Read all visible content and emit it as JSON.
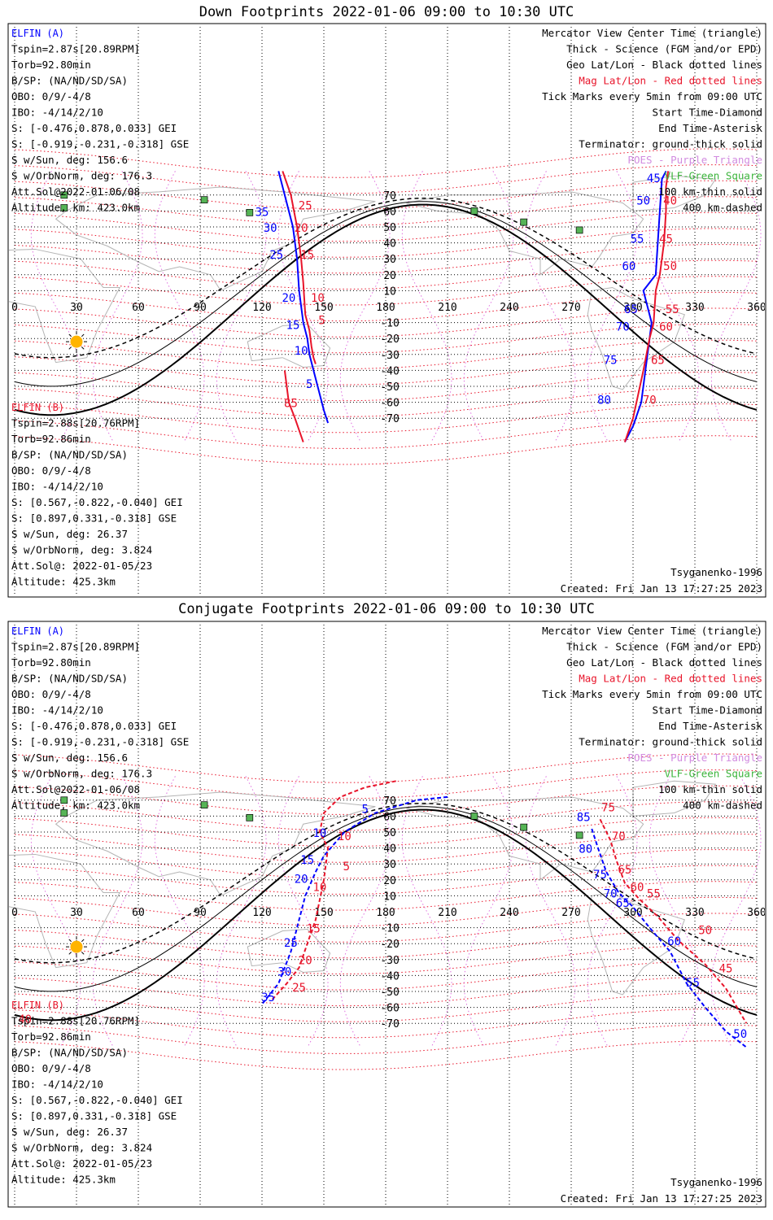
{
  "panels": [
    {
      "title": "Down Footprints 2022-01-06 09:00 to 10:30 UTC",
      "elfin_a": {
        "name": "ELFIN (A)",
        "lines": [
          "Tspin=2.87s[20.89RPM]",
          "Torb=92.80min",
          "B/SP: (NA/ND/SD/SA)",
          "OBO: 0/9/-4/8",
          "IBO: -4/14/2/10",
          "S: [-0.476,0.878,0.033] GEI",
          "S: [-0.919,-0.231,-0.318] GSE",
          "S w/Sun, deg: 156.6",
          "S w/OrbNorm, deg: 176.3",
          "Att.Sol@2022-01-06/08",
          "Altitude, km: 423.0km"
        ]
      },
      "elfin_b": {
        "name": "ELFIN (B)",
        "lines": [
          "Tspin=2.88s[20.76RPM]",
          "Torb=92.86min",
          "B/SP: (NA/ND/SD/SA)",
          "OBO: 0/9/-4/8",
          "IBO: -4/14/2/10",
          "S: [0.567,-0.822,-0.040] GEI",
          "S: [0.897,0.331,-0.318] GSE",
          "S w/Sun, deg: 26.37",
          "S w/OrbNorm, deg: 3.824",
          "Att.Sol@: 2022-01-05/23",
          "Altitude: 425.3km"
        ]
      },
      "legend": [
        {
          "text": "Mercator View Center Time (triangle)",
          "color": "#000000"
        },
        {
          "text": "Thick - Science (FGM and/or EPD)",
          "color": "#000000"
        },
        {
          "text": "Geo Lat/Lon - Black dotted lines",
          "color": "#000000"
        },
        {
          "text": "Mag Lat/Lon - Red dotted lines",
          "color": "#e8142a"
        },
        {
          "text": "Tick Marks every 5min from 09:00 UTC",
          "color": "#000000"
        },
        {
          "text": "Start Time-Diamond",
          "color": "#000000"
        },
        {
          "text": "End Time-Asterisk",
          "color": "#000000"
        },
        {
          "text": "Terminator: ground-thick solid",
          "color": "#000000"
        },
        {
          "text": "POES - Purple Triangle",
          "color": "#d28ce0"
        },
        {
          "text": "VLF-Green Square",
          "color": "#3cb43c"
        },
        {
          "text": "100 km-thin solid",
          "color": "#000000"
        },
        {
          "text": "400 km-dashed",
          "color": "#000000"
        }
      ],
      "model": "Tsyganenko-1996",
      "created": "Created: Fri Jan 13 17:27:25 2023",
      "a_ticks": [
        {
          "t": "35",
          "lon": 120,
          "lat": 57
        },
        {
          "t": "30",
          "lon": 124,
          "lat": 47
        },
        {
          "t": "25",
          "lon": 127,
          "lat": 30
        },
        {
          "t": "20",
          "lon": 133,
          "lat": 3
        },
        {
          "t": "15",
          "lon": 135,
          "lat": -14
        },
        {
          "t": "10",
          "lon": 139,
          "lat": -30
        },
        {
          "t": "5",
          "lon": 143,
          "lat": -51
        },
        {
          "t": "45",
          "lon": 310,
          "lat": 78
        },
        {
          "t": "50",
          "lon": 305,
          "lat": 64
        },
        {
          "t": "55",
          "lon": 302,
          "lat": 40
        },
        {
          "t": "60",
          "lon": 298,
          "lat": 23
        },
        {
          "t": "65",
          "lon": 299,
          "lat": -4
        },
        {
          "t": "70",
          "lon": 295,
          "lat": -15
        },
        {
          "t": "75",
          "lon": 289,
          "lat": -36
        },
        {
          "t": "80",
          "lon": 286,
          "lat": -61
        }
      ],
      "b_ticks": [
        {
          "t": "25",
          "lon": 141,
          "lat": 61
        },
        {
          "t": "20",
          "lon": 139,
          "lat": 47
        },
        {
          "t": "15",
          "lon": 142,
          "lat": 30
        },
        {
          "t": "10",
          "lon": 147,
          "lat": 3
        },
        {
          "t": "5",
          "lon": 149,
          "lat": -11
        },
        {
          "t": "85",
          "lon": 134,
          "lat": -63
        },
        {
          "t": "40",
          "lon": 318,
          "lat": 64
        },
        {
          "t": "45",
          "lon": 316,
          "lat": 40
        },
        {
          "t": "50",
          "lon": 318,
          "lat": 23
        },
        {
          "t": "55",
          "lon": 319,
          "lat": -4
        },
        {
          "t": "60",
          "lon": 316,
          "lat": -15
        },
        {
          "t": "65",
          "lon": 312,
          "lat": -36
        },
        {
          "t": "70",
          "lon": 308,
          "lat": -61
        }
      ]
    },
    {
      "title": "Conjugate Footprints 2022-01-06 09:00 to 10:30 UTC",
      "elfin_a": {
        "name": "ELFIN (A)",
        "lines": [
          "Tspin=2.87s[20.89RPM]",
          "Torb=92.80min",
          "B/SP: (NA/ND/SD/SA)",
          "OBO: 0/9/-4/8",
          "IBO: -4/14/2/10",
          "S: [-0.476,0.878,0.033] GEI",
          "S: [-0.919,-0.231,-0.318] GSE",
          "S w/Sun, deg: 156.6",
          "S w/OrbNorm, deg: 176.3",
          "Att.Sol@2022-01-06/08",
          "Altitude, km: 423.0km"
        ]
      },
      "elfin_b": {
        "name": "ELFIN (B)",
        "lines": [
          "Tspin=2.88s[20.76RPM]",
          "Torb=92.86min",
          "B/SP: (NA/ND/SD/SA)",
          "OBO: 0/9/-4/8",
          "IBO: -4/14/2/10",
          "S: [0.567,-0.822,-0.040] GEI",
          "S: [0.897,0.331,-0.318] GSE",
          "S w/Sun, deg: 26.37",
          "S w/OrbNorm, deg: 3.824",
          "Att.Sol@: 2022-01-05/23",
          "Altitude: 425.3km"
        ]
      },
      "legend": [
        {
          "text": "Mercator View Center Time (triangle)",
          "color": "#000000"
        },
        {
          "text": "Thick - Science (FGM and/or EPD)",
          "color": "#000000"
        },
        {
          "text": "Geo Lat/Lon - Black dotted lines",
          "color": "#000000"
        },
        {
          "text": "Mag Lat/Lon - Red dotted lines",
          "color": "#e8142a"
        },
        {
          "text": "Tick Marks every 5min from 09:00 UTC",
          "color": "#000000"
        },
        {
          "text": "Start Time-Diamond",
          "color": "#000000"
        },
        {
          "text": "End Time-Asterisk",
          "color": "#000000"
        },
        {
          "text": "Terminator: ground-thick solid",
          "color": "#000000"
        },
        {
          "text": "POES - Purple Triangle",
          "color": "#d28ce0"
        },
        {
          "text": "VLF-Green Square",
          "color": "#3cb43c"
        },
        {
          "text": "100 km-thin solid",
          "color": "#000000"
        },
        {
          "text": "400 km-dashed",
          "color": "#000000"
        }
      ],
      "model": "Tsyganenko-1996",
      "created": "Created: Fri Jan 13 17:27:25 2023",
      "a_ticks": [
        {
          "t": "5",
          "lon": 170,
          "lat": 62
        },
        {
          "t": "10",
          "lon": 148,
          "lat": 47
        },
        {
          "t": "15",
          "lon": 142,
          "lat": 30
        },
        {
          "t": "20",
          "lon": 139,
          "lat": 18
        },
        {
          "t": "25",
          "lon": 134,
          "lat": -22
        },
        {
          "t": "30",
          "lon": 131,
          "lat": -40
        },
        {
          "t": "35",
          "lon": 123,
          "lat": -56
        },
        {
          "t": "85",
          "lon": 276,
          "lat": 57
        },
        {
          "t": "80",
          "lon": 277,
          "lat": 37
        },
        {
          "t": "75",
          "lon": 284,
          "lat": 21
        },
        {
          "t": "70",
          "lon": 289,
          "lat": 9
        },
        {
          "t": "65",
          "lon": 295,
          "lat": 3
        },
        {
          "t": "60",
          "lon": 320,
          "lat": -21
        },
        {
          "t": "55",
          "lon": 329,
          "lat": -47
        },
        {
          "t": "50",
          "lon": 352,
          "lat": -79
        }
      ],
      "b_ticks": [
        {
          "t": "10",
          "lon": 160,
          "lat": 45
        },
        {
          "t": "5",
          "lon": 161,
          "lat": 26
        },
        {
          "t": "10",
          "lon": 148,
          "lat": 13
        },
        {
          "t": "15",
          "lon": 145,
          "lat": -13
        },
        {
          "t": "20",
          "lon": 141,
          "lat": -33
        },
        {
          "t": "25",
          "lon": 138,
          "lat": -50
        },
        {
          "t": "40",
          "lon": 5,
          "lat": -70
        },
        {
          "t": "75",
          "lon": 288,
          "lat": 63
        },
        {
          "t": "70",
          "lon": 293,
          "lat": 45
        },
        {
          "t": "65",
          "lon": 296,
          "lat": 24
        },
        {
          "t": "60",
          "lon": 302,
          "lat": 13
        },
        {
          "t": "55",
          "lon": 310,
          "lat": 9
        },
        {
          "t": "50",
          "lon": 335,
          "lat": -14
        },
        {
          "t": "45",
          "lon": 345,
          "lat": -38
        }
      ]
    }
  ],
  "chart_data": [
    {
      "type": "line",
      "title": "Down Footprints 2022-01-06 09:00 to 10:30 UTC",
      "xlabel": "",
      "ylabel": "",
      "xlim": [
        0,
        360
      ],
      "ylim": [
        -80,
        80
      ],
      "x_ticks": [
        0,
        30,
        60,
        90,
        120,
        150,
        180,
        210,
        240,
        270,
        300,
        330,
        360
      ],
      "y_ticks": [
        70,
        60,
        50,
        40,
        30,
        20,
        10,
        -10,
        -20,
        -30,
        -40,
        -50,
        -60,
        -70
      ],
      "grid": true,
      "series": [
        {
          "name": "ELFIN (A)",
          "color": "#0000ff",
          "x": [
            128,
            131,
            135,
            137,
            138,
            140,
            142,
            143,
            145,
            147,
            150,
            152
          ],
          "y": [
            85,
            70,
            50,
            30,
            10,
            -10,
            -20,
            -30,
            -40,
            -50,
            -65,
            -73
          ]
        },
        {
          "name": "ELFIN (A)",
          "color": "#0000ff",
          "x": [
            316,
            314,
            313,
            312,
            311,
            305,
            309,
            308,
            306,
            304,
            300,
            296
          ],
          "y": [
            85,
            80,
            60,
            40,
            20,
            10,
            -10,
            -20,
            -40,
            -60,
            -75,
            -85
          ]
        },
        {
          "name": "ELFIN (B)",
          "color": "#e8142a",
          "x": [
            130,
            134,
            137,
            139,
            140,
            141,
            143,
            144,
            145,
            146
          ],
          "y": [
            85,
            70,
            50,
            30,
            15,
            -5,
            -15,
            -25,
            -32,
            -36
          ]
        },
        {
          "name": "ELFIN (B)",
          "color": "#e8142a",
          "x": [
            317,
            316,
            316,
            315,
            313,
            311,
            310,
            308,
            305,
            300,
            296
          ],
          "y": [
            85,
            75,
            60,
            40,
            20,
            10,
            -10,
            -20,
            -40,
            -70,
            -85
          ]
        },
        {
          "name": "ELFIN (B)",
          "color": "#e8142a",
          "x": [
            131,
            132,
            133,
            136,
            140
          ],
          "y": [
            -40,
            -50,
            -60,
            -70,
            -85
          ]
        }
      ]
    },
    {
      "type": "line",
      "title": "Conjugate Footprints 2022-01-06 09:00 to 10:30 UTC",
      "xlabel": "",
      "ylabel": "",
      "xlim": [
        0,
        360
      ],
      "ylim": [
        -80,
        80
      ],
      "x_ticks": [
        0,
        30,
        60,
        90,
        120,
        150,
        180,
        210,
        240,
        270,
        300,
        330,
        360
      ],
      "y_ticks": [
        70,
        60,
        50,
        40,
        30,
        20,
        10,
        -10,
        -20,
        -30,
        -40,
        -50,
        -60,
        -70
      ],
      "grid": true,
      "series": [
        {
          "name": "ELFIN (A)",
          "color": "#0000ff",
          "x": [
            210,
            195,
            175,
            160,
            150,
            146,
            141,
            138,
            134,
            128,
            120
          ],
          "y": [
            72,
            70,
            62,
            50,
            35,
            25,
            10,
            -5,
            -25,
            -45,
            -58
          ]
        },
        {
          "name": "ELFIN (A)",
          "color": "#0000ff",
          "x": [
            280,
            283,
            287,
            293,
            300,
            308,
            318,
            326,
            335,
            345,
            355
          ],
          "y": [
            52,
            40,
            25,
            12,
            3,
            -10,
            -25,
            -45,
            -60,
            -75,
            -85
          ]
        },
        {
          "name": "ELFIN (B)",
          "color": "#e8142a",
          "x": [
            185,
            170,
            158,
            150,
            148,
            152,
            150,
            146,
            142,
            138,
            132,
            125
          ],
          "y": [
            82,
            78,
            72,
            62,
            50,
            40,
            20,
            -5,
            -20,
            -35,
            -45,
            -55
          ]
        },
        {
          "name": "ELFIN (B)",
          "color": "#e8142a",
          "x": [
            284,
            289,
            292,
            296,
            303,
            312,
            322,
            335,
            345,
            355
          ],
          "y": [
            58,
            45,
            32,
            18,
            8,
            -3,
            -18,
            -33,
            -48,
            -70
          ]
        }
      ]
    }
  ]
}
